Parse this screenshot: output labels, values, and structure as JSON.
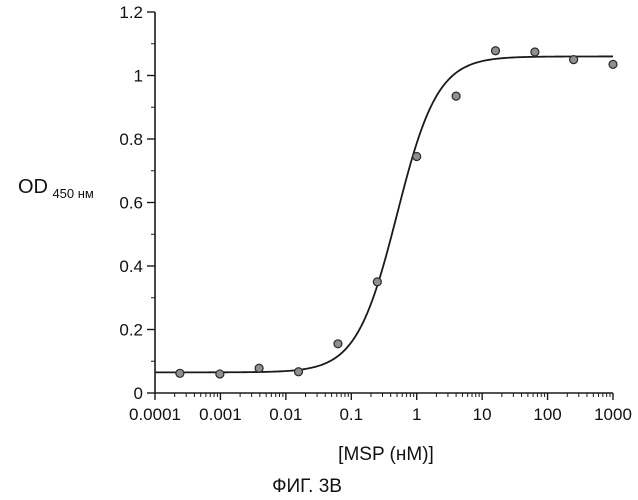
{
  "chart_data": {
    "type": "scatter",
    "title": "",
    "xlabel": "[MSP (нМ)]",
    "ylabel": {
      "main": "OD",
      "subscript": "450 нм"
    },
    "caption": "ФИГ. 3В",
    "xscale": "log",
    "xlim": [
      0.0001,
      1000
    ],
    "ylim": [
      0,
      1.2
    ],
    "x_ticks": [
      {
        "value": 0.0001,
        "label": "0.0001"
      },
      {
        "value": 0.001,
        "label": "0.001"
      },
      {
        "value": 0.01,
        "label": "0.01"
      },
      {
        "value": 0.1,
        "label": "0.1"
      },
      {
        "value": 1,
        "label": "1"
      },
      {
        "value": 10,
        "label": "10"
      },
      {
        "value": 100,
        "label": "100"
      },
      {
        "value": 1000,
        "label": "1000"
      }
    ],
    "y_ticks": [
      {
        "value": 0,
        "label": "0"
      },
      {
        "value": 0.2,
        "label": "0.2"
      },
      {
        "value": 0.4,
        "label": "0.4"
      },
      {
        "value": 0.6,
        "label": "0.6"
      },
      {
        "value": 0.8,
        "label": "0.8"
      },
      {
        "value": 1,
        "label": "1"
      },
      {
        "value": 1.2,
        "label": "1.2"
      }
    ],
    "grid": false,
    "points": [
      {
        "x": 0.00024,
        "y": 0.062
      },
      {
        "x": 0.00098,
        "y": 0.06
      },
      {
        "x": 0.0039,
        "y": 0.078
      },
      {
        "x": 0.0156,
        "y": 0.067
      },
      {
        "x": 0.0625,
        "y": 0.155
      },
      {
        "x": 0.25,
        "y": 0.35
      },
      {
        "x": 1,
        "y": 0.745
      },
      {
        "x": 4,
        "y": 0.935
      },
      {
        "x": 16,
        "y": 1.078
      },
      {
        "x": 64,
        "y": 1.074
      },
      {
        "x": 250,
        "y": 1.05
      },
      {
        "x": 1000,
        "y": 1.035
      }
    ],
    "fit_curve": {
      "model": "4PL",
      "bottom": 0.065,
      "top": 1.06,
      "ec50": 0.5,
      "hill": 1.4
    },
    "colors": {
      "marker_fill": "#8f8f8f",
      "marker_edge": "#2a2a2a",
      "curve": "#1a1a1a",
      "axis": "#1a1a1a"
    }
  }
}
